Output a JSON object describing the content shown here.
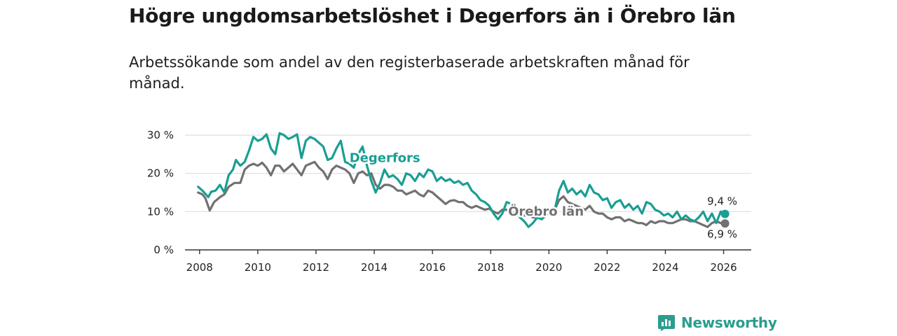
{
  "title": "Högre ungdomsarbetslöshet i Degerfors än i Örebro län",
  "subtitle": "Arbetssökande som andel av den registerbaserade arbetskraften månad för månad.",
  "brand": {
    "name": "Newsworthy",
    "icon": "bar-chart-badge-icon"
  },
  "colors": {
    "degerfors": "#1a9e93",
    "orebro": "#717073",
    "grid": "#dddddd",
    "axis": "#333333"
  },
  "chart_data": {
    "type": "line",
    "title": "Högre ungdomsarbetslöshet i Degerfors än i Örebro län",
    "xlabel": "",
    "ylabel": "",
    "xlim": [
      2007.5,
      2026.95
    ],
    "ylim": [
      0,
      30
    ],
    "x_ticks": [
      2008,
      2010,
      2012,
      2014,
      2016,
      2018,
      2020,
      2022,
      2024,
      2026
    ],
    "y_ticks": [
      {
        "value": 0,
        "label": "0 %"
      },
      {
        "value": 10,
        "label": "10 %"
      },
      {
        "value": 20,
        "label": "20 %"
      },
      {
        "value": 30,
        "label": "30 %"
      }
    ],
    "series": [
      {
        "name": "Degerfors",
        "label": "Degerfors",
        "color": "#1a9e93",
        "end_label": "9,4 %",
        "points": [
          [
            2007.95,
            16.5
          ],
          [
            2008.1,
            15.5
          ],
          [
            2008.3,
            13.8
          ],
          [
            2008.4,
            15.2
          ],
          [
            2008.55,
            15.5
          ],
          [
            2008.7,
            17.0
          ],
          [
            2008.85,
            15.0
          ],
          [
            2009.0,
            19.5
          ],
          [
            2009.15,
            21.0
          ],
          [
            2009.25,
            23.5
          ],
          [
            2009.4,
            22.0
          ],
          [
            2009.55,
            23.0
          ],
          [
            2009.7,
            26.0
          ],
          [
            2009.85,
            29.5
          ],
          [
            2010.0,
            28.5
          ],
          [
            2010.15,
            29.0
          ],
          [
            2010.3,
            30.2
          ],
          [
            2010.45,
            26.5
          ],
          [
            2010.6,
            25.0
          ],
          [
            2010.75,
            30.5
          ],
          [
            2010.9,
            30.0
          ],
          [
            2011.05,
            29.0
          ],
          [
            2011.2,
            29.5
          ],
          [
            2011.35,
            30.2
          ],
          [
            2011.5,
            24.0
          ],
          [
            2011.65,
            28.5
          ],
          [
            2011.8,
            29.5
          ],
          [
            2011.95,
            29.0
          ],
          [
            2012.1,
            28.0
          ],
          [
            2012.25,
            27.0
          ],
          [
            2012.4,
            23.5
          ],
          [
            2012.55,
            24.0
          ],
          [
            2012.7,
            26.5
          ],
          [
            2012.85,
            28.5
          ],
          [
            2013.0,
            23.0
          ],
          [
            2013.15,
            22.5
          ],
          [
            2013.3,
            21.5
          ],
          [
            2013.45,
            25.0
          ],
          [
            2013.6,
            27.0
          ],
          [
            2013.75,
            22.0
          ],
          [
            2013.9,
            18.0
          ],
          [
            2014.05,
            15.0
          ],
          [
            2014.2,
            17.5
          ],
          [
            2014.35,
            21.0
          ],
          [
            2014.5,
            19.0
          ],
          [
            2014.65,
            19.5
          ],
          [
            2014.8,
            18.5
          ],
          [
            2014.95,
            17.0
          ],
          [
            2015.1,
            20.0
          ],
          [
            2015.25,
            19.5
          ],
          [
            2015.4,
            18.0
          ],
          [
            2015.55,
            20.0
          ],
          [
            2015.7,
            19.0
          ],
          [
            2015.85,
            21.0
          ],
          [
            2016.0,
            20.5
          ],
          [
            2016.15,
            18.0
          ],
          [
            2016.3,
            19.0
          ],
          [
            2016.45,
            18.0
          ],
          [
            2016.6,
            18.5
          ],
          [
            2016.75,
            17.5
          ],
          [
            2016.9,
            18.0
          ],
          [
            2017.05,
            17.0
          ],
          [
            2017.2,
            17.5
          ],
          [
            2017.35,
            15.5
          ],
          [
            2017.5,
            14.5
          ],
          [
            2017.65,
            13.0
          ],
          [
            2017.8,
            12.5
          ],
          [
            2017.95,
            11.5
          ],
          [
            2018.1,
            9.5
          ],
          [
            2018.25,
            8.0
          ],
          [
            2018.4,
            9.5
          ],
          [
            2018.55,
            12.5
          ],
          [
            2018.7,
            12.0
          ],
          [
            2018.85,
            11.0
          ],
          [
            2019.0,
            8.5
          ],
          [
            2019.15,
            7.5
          ],
          [
            2019.3,
            6.0
          ],
          [
            2019.45,
            7.0
          ],
          [
            2019.6,
            8.5
          ],
          [
            2019.75,
            8.0
          ],
          [
            2019.9,
            9.0
          ],
          [
            2020.05,
            10.0
          ],
          [
            2020.2,
            10.5
          ],
          [
            2020.35,
            15.5
          ],
          [
            2020.5,
            18.0
          ],
          [
            2020.65,
            15.0
          ],
          [
            2020.8,
            16.0
          ],
          [
            2020.95,
            14.5
          ],
          [
            2021.1,
            15.5
          ],
          [
            2021.25,
            14.0
          ],
          [
            2021.4,
            17.0
          ],
          [
            2021.55,
            15.0
          ],
          [
            2021.7,
            14.5
          ],
          [
            2021.85,
            13.0
          ],
          [
            2022.0,
            13.5
          ],
          [
            2022.15,
            11.0
          ],
          [
            2022.3,
            12.5
          ],
          [
            2022.45,
            13.0
          ],
          [
            2022.6,
            11.0
          ],
          [
            2022.75,
            12.0
          ],
          [
            2022.9,
            10.5
          ],
          [
            2023.05,
            11.5
          ],
          [
            2023.2,
            9.5
          ],
          [
            2023.35,
            12.5
          ],
          [
            2023.5,
            12.0
          ],
          [
            2023.65,
            10.5
          ],
          [
            2023.8,
            10.0
          ],
          [
            2023.95,
            9.0
          ],
          [
            2024.1,
            9.5
          ],
          [
            2024.25,
            8.5
          ],
          [
            2024.4,
            10.0
          ],
          [
            2024.55,
            8.0
          ],
          [
            2024.7,
            9.0
          ],
          [
            2024.85,
            8.0
          ],
          [
            2025.0,
            7.5
          ],
          [
            2025.15,
            8.5
          ],
          [
            2025.3,
            10.0
          ],
          [
            2025.45,
            7.5
          ],
          [
            2025.6,
            9.5
          ],
          [
            2025.75,
            7.0
          ],
          [
            2025.9,
            10.0
          ],
          [
            2026.05,
            9.4
          ]
        ]
      },
      {
        "name": "Örebro län",
        "label": "Örebro län",
        "color": "#717073",
        "end_label": "6,9 %",
        "points": [
          [
            2007.95,
            15.0
          ],
          [
            2008.1,
            14.5
          ],
          [
            2008.2,
            13.5
          ],
          [
            2008.35,
            10.3
          ],
          [
            2008.5,
            12.5
          ],
          [
            2008.7,
            13.8
          ],
          [
            2008.85,
            14.5
          ],
          [
            2009.0,
            16.5
          ],
          [
            2009.2,
            17.5
          ],
          [
            2009.4,
            17.5
          ],
          [
            2009.55,
            21.0
          ],
          [
            2009.7,
            22.0
          ],
          [
            2009.85,
            22.5
          ],
          [
            2010.0,
            22.0
          ],
          [
            2010.15,
            22.8
          ],
          [
            2010.3,
            21.5
          ],
          [
            2010.45,
            19.5
          ],
          [
            2010.6,
            22.0
          ],
          [
            2010.75,
            22.0
          ],
          [
            2010.9,
            20.5
          ],
          [
            2011.05,
            21.5
          ],
          [
            2011.2,
            22.5
          ],
          [
            2011.35,
            21.0
          ],
          [
            2011.5,
            19.5
          ],
          [
            2011.65,
            22.0
          ],
          [
            2011.8,
            22.5
          ],
          [
            2011.95,
            23.0
          ],
          [
            2012.1,
            21.5
          ],
          [
            2012.25,
            20.5
          ],
          [
            2012.4,
            18.5
          ],
          [
            2012.55,
            21.0
          ],
          [
            2012.7,
            22.0
          ],
          [
            2012.85,
            21.5
          ],
          [
            2013.0,
            21.0
          ],
          [
            2013.15,
            20.0
          ],
          [
            2013.3,
            17.5
          ],
          [
            2013.45,
            20.0
          ],
          [
            2013.6,
            20.5
          ],
          [
            2013.75,
            19.5
          ],
          [
            2013.9,
            20.0
          ],
          [
            2014.05,
            17.0
          ],
          [
            2014.2,
            16.0
          ],
          [
            2014.35,
            17.0
          ],
          [
            2014.5,
            17.0
          ],
          [
            2014.65,
            16.5
          ],
          [
            2014.8,
            15.5
          ],
          [
            2014.95,
            15.5
          ],
          [
            2015.1,
            14.5
          ],
          [
            2015.25,
            15.0
          ],
          [
            2015.4,
            15.5
          ],
          [
            2015.55,
            14.5
          ],
          [
            2015.7,
            14.0
          ],
          [
            2015.85,
            15.5
          ],
          [
            2016.0,
            15.0
          ],
          [
            2016.15,
            14.0
          ],
          [
            2016.3,
            13.0
          ],
          [
            2016.45,
            12.0
          ],
          [
            2016.6,
            12.8
          ],
          [
            2016.75,
            13.0
          ],
          [
            2016.9,
            12.5
          ],
          [
            2017.05,
            12.5
          ],
          [
            2017.2,
            11.5
          ],
          [
            2017.35,
            11.0
          ],
          [
            2017.5,
            11.5
          ],
          [
            2017.65,
            11.0
          ],
          [
            2017.8,
            10.5
          ],
          [
            2017.95,
            10.8
          ],
          [
            2018.1,
            10.0
          ],
          [
            2018.25,
            9.5
          ],
          [
            2018.4,
            10.5
          ],
          [
            2018.55,
            10.5
          ],
          [
            2018.7,
            10.0
          ],
          [
            2018.85,
            9.5
          ],
          [
            2019.0,
            9.5
          ],
          [
            2019.15,
            9.0
          ],
          [
            2019.3,
            9.0
          ],
          [
            2019.45,
            8.5
          ],
          [
            2019.6,
            8.5
          ],
          [
            2019.75,
            9.0
          ],
          [
            2019.9,
            9.5
          ],
          [
            2020.05,
            10.0
          ],
          [
            2020.2,
            10.5
          ],
          [
            2020.35,
            13.0
          ],
          [
            2020.5,
            14.0
          ],
          [
            2020.65,
            12.5
          ],
          [
            2020.8,
            12.0
          ],
          [
            2020.95,
            11.5
          ],
          [
            2021.1,
            11.0
          ],
          [
            2021.25,
            10.5
          ],
          [
            2021.4,
            11.5
          ],
          [
            2021.55,
            10.0
          ],
          [
            2021.7,
            9.5
          ],
          [
            2021.85,
            9.5
          ],
          [
            2022.0,
            8.5
          ],
          [
            2022.15,
            8.0
          ],
          [
            2022.3,
            8.5
          ],
          [
            2022.45,
            8.5
          ],
          [
            2022.6,
            7.5
          ],
          [
            2022.75,
            8.0
          ],
          [
            2022.9,
            7.5
          ],
          [
            2023.05,
            7.0
          ],
          [
            2023.2,
            7.0
          ],
          [
            2023.35,
            6.5
          ],
          [
            2023.5,
            7.5
          ],
          [
            2023.65,
            7.0
          ],
          [
            2023.8,
            7.5
          ],
          [
            2023.95,
            7.5
          ],
          [
            2024.1,
            7.0
          ],
          [
            2024.25,
            7.0
          ],
          [
            2024.4,
            7.5
          ],
          [
            2024.55,
            8.0
          ],
          [
            2024.7,
            8.0
          ],
          [
            2024.85,
            7.5
          ],
          [
            2025.0,
            7.5
          ],
          [
            2025.15,
            7.0
          ],
          [
            2025.3,
            6.5
          ],
          [
            2025.45,
            6.0
          ],
          [
            2025.6,
            7.0
          ],
          [
            2025.75,
            7.5
          ],
          [
            2025.9,
            7.0
          ],
          [
            2026.05,
            6.9
          ]
        ]
      }
    ]
  }
}
